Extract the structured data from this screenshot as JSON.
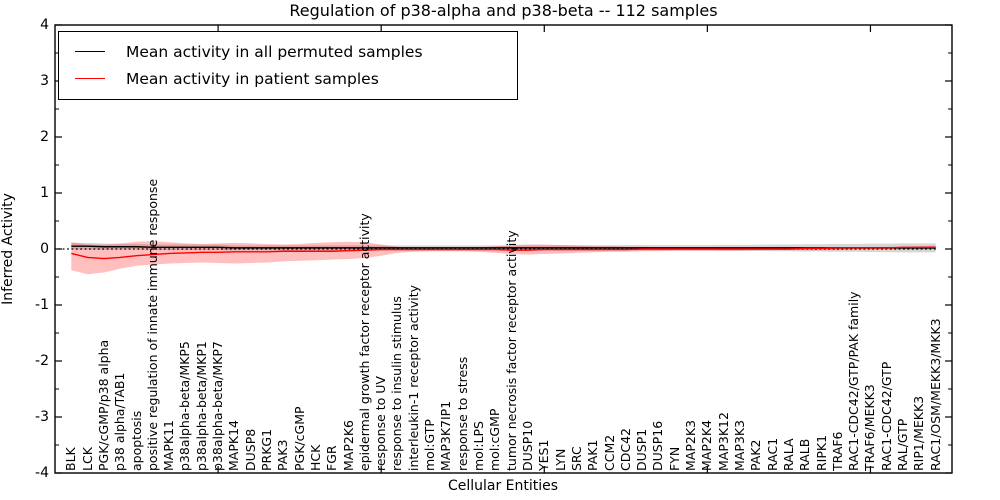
{
  "chart_data": {
    "type": "line",
    "title": "Regulation of p38-alpha and p38-beta -- 112 samples",
    "xlabel": "Cellular Entities",
    "ylabel": "Inferred Activity",
    "ylim": [
      -4,
      4
    ],
    "xlim": [
      0,
      55
    ],
    "yticks": [
      4,
      3,
      2,
      1,
      0,
      -1,
      -2,
      -3,
      -4
    ],
    "ytick_labels": [
      "4",
      "3",
      "2",
      "1",
      "0",
      "-1",
      "-2",
      "-3",
      "-4"
    ],
    "y_minor_step": 0.5,
    "x_numeric_ticks": [
      10,
      20,
      30,
      40,
      50
    ],
    "grid": false,
    "legend": {
      "position": "upper left",
      "items": [
        {
          "label": "Mean activity in all permuted samples",
          "color": "#000000"
        },
        {
          "label": "Mean activity in patient samples",
          "color": "#ff0000"
        }
      ]
    },
    "zero_line": {
      "y": 0,
      "style": "dotted",
      "color": "#000000"
    },
    "categories": [
      "BLK",
      "LCK",
      "PGK/cGMP/p38 alpha",
      "p38 alpha/TAB1",
      "apoptosis",
      "positive regulation of innate immune response",
      "MAPK11",
      "p38alpha-beta/MKP5",
      "p38alpha-beta/MKP1",
      "p38alpha-beta/MKP7",
      "MAPK14",
      "DUSP8",
      "PRKG1",
      "PAK3",
      "PGK/cGMP",
      "HCK",
      "FGR",
      "MAP2K6",
      "epidermal growth factor receptor activity",
      "response to UV",
      "response to insulin stimulus",
      "interleukin-1 receptor activity",
      "mol:GTP",
      "MAP3K7IP1",
      "response to stress",
      "mol:LPS",
      "mol:cGMP",
      "tumor necrosis factor receptor activity",
      "DUSP10",
      "YES1",
      "LYN",
      "SRC",
      "PAK1",
      "CCM2",
      "CDC42",
      "DUSP1",
      "DUSP16",
      "FYN",
      "MAP2K3",
      "MAP2K4",
      "MAP3K12",
      "MAP3K3",
      "PAK2",
      "RAC1",
      "RALA",
      "RALB",
      "RIPK1",
      "TRAF6",
      "RAC1-CDC42/GTP/PAK family",
      "TRAF6/MEKK3",
      "RAC1-CDC42/GTP",
      "RAL/GTP",
      "RIP1/MEKK3",
      "RAC1/OSM/MEKK3/MKK3"
    ],
    "series": [
      {
        "name": "Mean activity in all permuted samples",
        "color": "#000000",
        "values": [
          0.05,
          0.05,
          0.04,
          0.04,
          0.04,
          0.03,
          0.03,
          0.03,
          0.03,
          0.03,
          0.02,
          0.02,
          0.02,
          0.02,
          0.02,
          0.02,
          0.02,
          0.02,
          0.02,
          0.02,
          0.02,
          0.02,
          0.02,
          0.02,
          0.02,
          0.02,
          0.02,
          0.02,
          0.02,
          0.02,
          0.02,
          0.02,
          0.02,
          0.02,
          0.02,
          0.02,
          0.02,
          0.02,
          0.02,
          0.02,
          0.02,
          0.02,
          0.02,
          0.02,
          0.02,
          0.02,
          0.02,
          0.02,
          0.02,
          0.02,
          0.02,
          0.02,
          0.02,
          0.02
        ]
      },
      {
        "name": "Mean activity in patient samples",
        "color": "#ff0000",
        "values": [
          -0.08,
          -0.15,
          -0.17,
          -0.15,
          -0.12,
          -0.1,
          -0.08,
          -0.07,
          -0.06,
          -0.06,
          -0.05,
          -0.05,
          -0.05,
          -0.04,
          -0.04,
          -0.04,
          -0.04,
          -0.03,
          -0.02,
          -0.01,
          -0.01,
          -0.01,
          -0.01,
          -0.01,
          -0.01,
          -0.01,
          -0.01,
          -0.02,
          -0.02,
          -0.01,
          -0.01,
          -0.01,
          -0.01,
          -0.01,
          -0.01,
          0.0,
          0.0,
          0.0,
          0.0,
          0.0,
          0.0,
          0.0,
          0.0,
          0.0,
          0.0,
          0.01,
          0.01,
          0.02,
          0.02,
          0.02,
          0.02,
          0.03,
          0.03,
          0.03
        ]
      }
    ],
    "bands": [
      {
        "name": "permuted-samples-band",
        "color": "rgba(120,120,120,0.30)",
        "center_series": 0,
        "half_widths": [
          0.06,
          0.06,
          0.055,
          0.05,
          0.05,
          0.05,
          0.05,
          0.05,
          0.05,
          0.05,
          0.045,
          0.045,
          0.045,
          0.045,
          0.045,
          0.045,
          0.045,
          0.045,
          0.045,
          0.045,
          0.045,
          0.045,
          0.045,
          0.045,
          0.045,
          0.045,
          0.045,
          0.045,
          0.045,
          0.045,
          0.05,
          0.05,
          0.05,
          0.05,
          0.05,
          0.05,
          0.05,
          0.05,
          0.05,
          0.05,
          0.055,
          0.055,
          0.055,
          0.06,
          0.06,
          0.065,
          0.065,
          0.07,
          0.07,
          0.075,
          0.075,
          0.08,
          0.08,
          0.08
        ]
      },
      {
        "name": "patient-samples-band",
        "color": "rgba(255,0,0,0.25)",
        "top": [
          0.12,
          0.08,
          0.08,
          0.1,
          0.13,
          0.14,
          0.12,
          0.1,
          0.09,
          0.1,
          0.11,
          0.1,
          0.09,
          0.08,
          0.09,
          0.11,
          0.12,
          0.13,
          0.12,
          0.08,
          0.04,
          0.02,
          0.02,
          0.02,
          0.02,
          0.03,
          0.05,
          0.07,
          0.08,
          0.08,
          0.07,
          0.06,
          0.05,
          0.05,
          0.04,
          0.04,
          0.03,
          0.03,
          0.03,
          0.03,
          0.03,
          0.03,
          0.03,
          0.03,
          0.03,
          0.03,
          0.03,
          0.03,
          0.03,
          0.03,
          0.04,
          0.04,
          0.05,
          0.06
        ],
        "bottom": [
          -0.38,
          -0.45,
          -0.42,
          -0.35,
          -0.3,
          -0.28,
          -0.26,
          -0.25,
          -0.24,
          -0.25,
          -0.26,
          -0.25,
          -0.24,
          -0.22,
          -0.21,
          -0.2,
          -0.19,
          -0.18,
          -0.16,
          -0.12,
          -0.07,
          -0.05,
          -0.04,
          -0.04,
          -0.04,
          -0.05,
          -0.07,
          -0.09,
          -0.1,
          -0.09,
          -0.08,
          -0.07,
          -0.06,
          -0.05,
          -0.05,
          -0.04,
          -0.04,
          -0.03,
          -0.03,
          -0.03,
          -0.03,
          -0.03,
          -0.02,
          -0.02,
          -0.02,
          -0.02,
          -0.02,
          -0.02,
          -0.01,
          -0.01,
          -0.01,
          -0.01,
          -0.01,
          0.0
        ]
      }
    ]
  },
  "colors": {
    "background": "#ffffff",
    "axis": "#000000",
    "text": "#000000"
  }
}
